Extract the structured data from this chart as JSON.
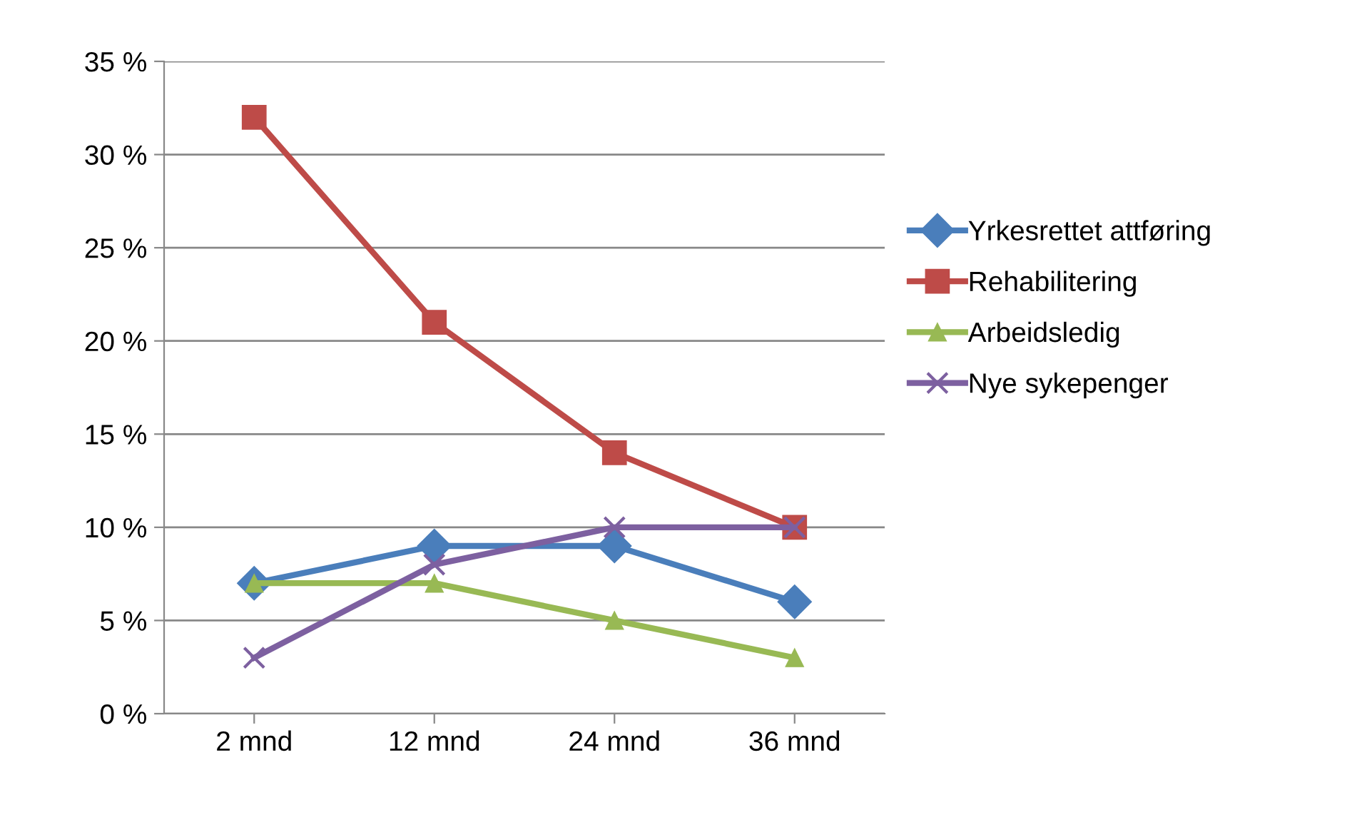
{
  "chart_data": {
    "type": "line",
    "categories": [
      "2 mnd",
      "12 mnd",
      "24 mnd",
      "36 mnd"
    ],
    "series": [
      {
        "name": "Yrkesrettet attføring",
        "color": "#4a7ebb",
        "marker": "diamond",
        "values": [
          7,
          9,
          9,
          6
        ]
      },
      {
        "name": "Rehabilitering",
        "color": "#be4b48",
        "marker": "square",
        "values": [
          32,
          21,
          14,
          10
        ]
      },
      {
        "name": "Arbeidsledig",
        "color": "#98b954",
        "marker": "triangle",
        "values": [
          7,
          7,
          5,
          3
        ]
      },
      {
        "name": "Nye sykepenger",
        "color": "#7d60a0",
        "marker": "cross",
        "values": [
          3,
          8,
          10,
          10
        ]
      }
    ],
    "ylim": [
      0,
      35
    ],
    "yticks": [
      {
        "value": 0,
        "label": "0 %"
      },
      {
        "value": 5,
        "label": "5 %"
      },
      {
        "value": 10,
        "label": "10 %"
      },
      {
        "value": 15,
        "label": "15 %"
      },
      {
        "value": 20,
        "label": "20 %"
      },
      {
        "value": 25,
        "label": "25 %"
      },
      {
        "value": 30,
        "label": "30 %"
      },
      {
        "value": 35,
        "label": "35 %"
      }
    ],
    "grid": "y",
    "legend": "right",
    "line_style": "solid"
  }
}
